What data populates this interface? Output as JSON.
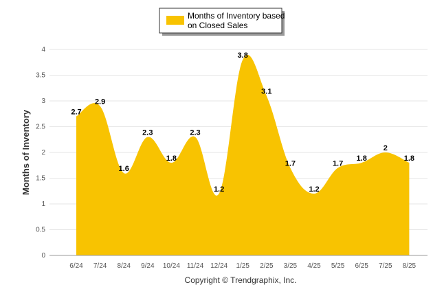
{
  "chart_data": {
    "type": "area",
    "categories": [
      "6/24",
      "7/24",
      "8/24",
      "9/24",
      "10/24",
      "11/24",
      "12/24",
      "1/25",
      "2/25",
      "3/25",
      "4/25",
      "5/25",
      "6/25",
      "7/25",
      "8/25"
    ],
    "series": [
      {
        "name_line1": "Months of Inventory based",
        "name_line2": "on Closed Sales",
        "values": [
          2.7,
          2.9,
          1.6,
          2.3,
          1.8,
          2.3,
          1.2,
          3.8,
          3.1,
          1.7,
          1.2,
          1.7,
          1.8,
          2.0,
          1.8
        ],
        "labels": [
          "2.7",
          "2.9",
          "1.6",
          "2.3",
          "1.8",
          "2.3",
          "1.2",
          "3.8",
          "3.1",
          "1.7",
          "1.2",
          "1.7",
          "1.8",
          "2",
          "1.8"
        ],
        "color": "#F8C301"
      }
    ],
    "ylabel": "Months of Inventory",
    "ylim": [
      0,
      4
    ],
    "yticks": [
      "0",
      "0.5",
      "1",
      "1.5",
      "2",
      "2.5",
      "3",
      "3.5",
      "4"
    ],
    "grid": true,
    "legend": "top-center"
  },
  "footer": "Copyright © Trendgraphix, Inc."
}
